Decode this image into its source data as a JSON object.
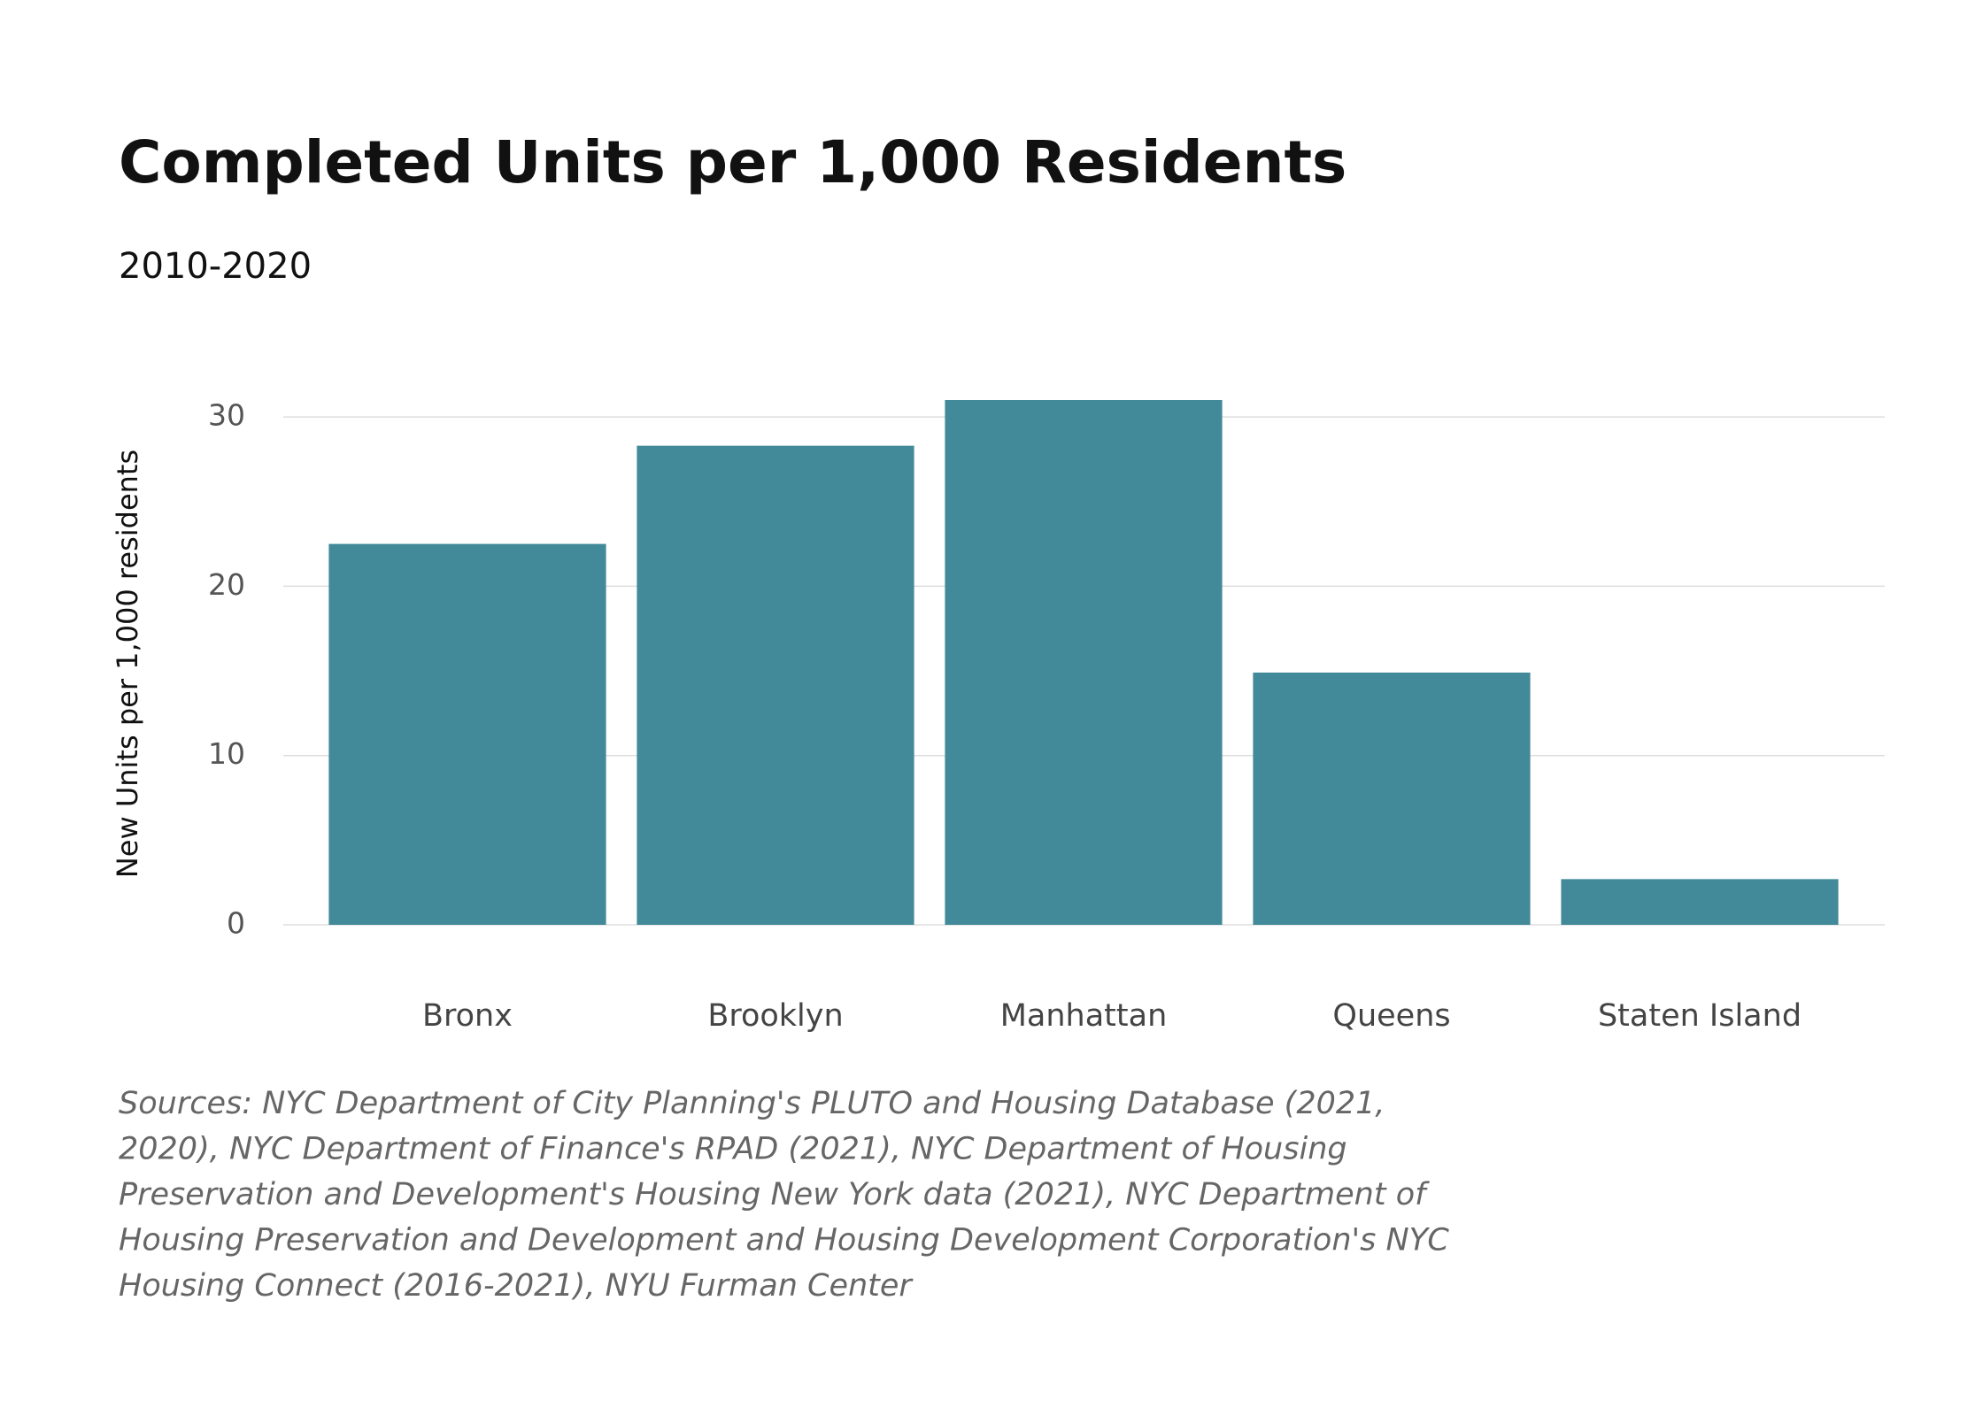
{
  "chart_data": {
    "type": "bar",
    "title": "Completed Units per 1,000 Residents",
    "subtitle": "2010-2020",
    "y_label": "New Units per 1,000 residents",
    "categories": [
      "Bronx",
      "Brooklyn",
      "Manhattan",
      "Queens",
      "Staten Island"
    ],
    "values": [
      22.5,
      28.3,
      31.0,
      14.9,
      2.7
    ],
    "color": "#428a99",
    "ylim": [
      0,
      31
    ],
    "yticks": [
      0,
      10,
      20,
      30
    ],
    "grid": true,
    "source_lines": [
      "Sources: NYC Department of City Planning's PLUTO and Housing Database (2021,",
      "2020), NYC Department of Finance's RPAD (2021), NYC Department of Housing",
      "Preservation and Development's Housing New York data (2021), NYC Department of",
      "Housing Preservation and Development and Housing Development Corporation's NYC",
      "Housing Connect (2016-2021), NYU Furman Center"
    ]
  }
}
